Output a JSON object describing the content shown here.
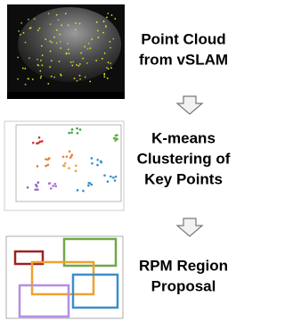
{
  "steps": [
    {
      "lines": [
        "Point Cloud",
        "from vSLAM"
      ]
    },
    {
      "lines": [
        "K-means",
        "Clustering of",
        "Key Points"
      ]
    },
    {
      "lines": [
        "RPM Region",
        "Proposal"
      ]
    }
  ]
}
